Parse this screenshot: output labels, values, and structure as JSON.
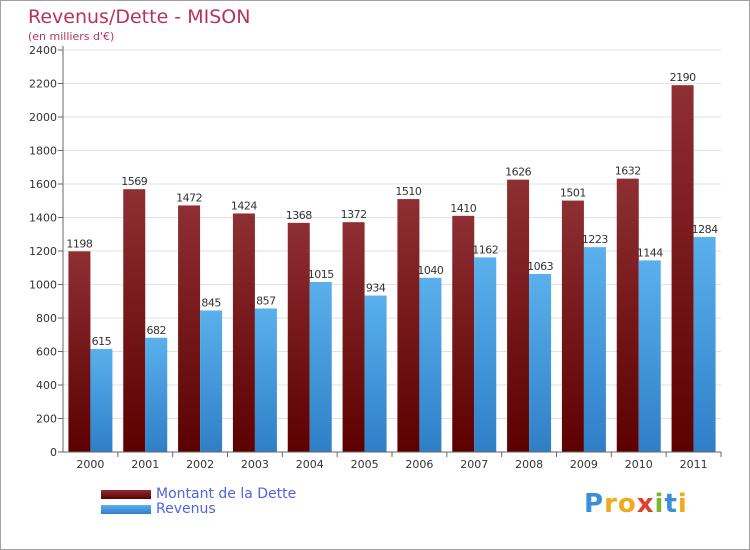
{
  "title": "Revenus/Dette - MISON",
  "subtitle": "(en milliers d'€)",
  "colors": {
    "dette_top": "#8e2f33",
    "dette_bottom": "#5c0000",
    "revenus_top": "#5ab0ec",
    "revenus_bottom": "#2f7fc8",
    "axis": "#666666",
    "text": "#333333"
  },
  "chart_data": {
    "type": "bar",
    "title": "Revenus/Dette - MISON",
    "ylabel": "(en milliers d'€)",
    "xlabel": "",
    "ylim": [
      0,
      2400
    ],
    "yticks": [
      0,
      200,
      400,
      600,
      800,
      1000,
      1200,
      1400,
      1600,
      1800,
      2000,
      2200,
      2400
    ],
    "grid": true,
    "categories": [
      "2000",
      "2001",
      "2002",
      "2003",
      "2004",
      "2005",
      "2006",
      "2007",
      "2008",
      "2009",
      "2010",
      "2011"
    ],
    "series": [
      {
        "name": "Montant de la Dette",
        "values": [
          1198,
          1569,
          1472,
          1424,
          1368,
          1372,
          1510,
          1410,
          1626,
          1501,
          1632,
          2190
        ]
      },
      {
        "name": "Revenus",
        "values": [
          615,
          682,
          845,
          857,
          1015,
          934,
          1040,
          1162,
          1063,
          1223,
          1144,
          1284
        ]
      }
    ],
    "legend_position": "bottom-left"
  },
  "logo": {
    "letters": [
      "P",
      "r",
      "o",
      "x",
      "i",
      "t",
      "i"
    ],
    "colors": [
      "#3a8fd6",
      "#f2a91b",
      "#f2a91b",
      "#e0402e",
      "#7ab534",
      "#3a8fd6",
      "#f2a91b"
    ]
  }
}
